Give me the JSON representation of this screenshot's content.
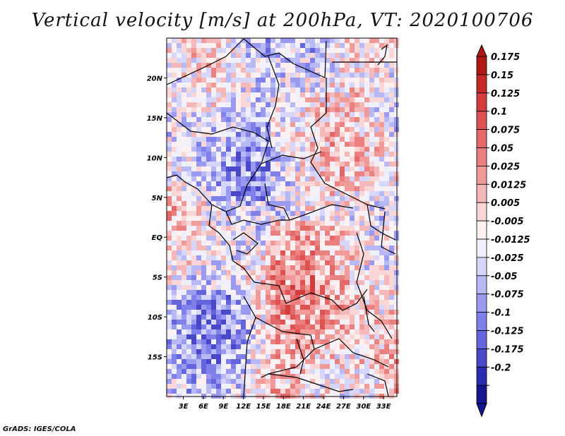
{
  "title": "Vertical velocity [m/s] at 200hPa, VT: 2020100706",
  "footer": "GrADS: IGES/COLA",
  "map": {
    "lat_labels": [
      "20N",
      "15N",
      "10N",
      "5N",
      "EQ",
      "5S",
      "10S",
      "15S"
    ],
    "lat_values": [
      20,
      15,
      10,
      5,
      0,
      -5,
      -10,
      -15
    ],
    "lon_labels": [
      "3E",
      "6E",
      "9E",
      "12E",
      "15E",
      "18E",
      "21E",
      "24E",
      "27E",
      "30E",
      "33E"
    ],
    "lon_values": [
      3,
      6,
      9,
      12,
      15,
      18,
      21,
      24,
      27,
      30,
      33
    ],
    "lon_range": [
      0.5,
      35
    ],
    "lat_range": [
      -20,
      25
    ]
  },
  "colorbar": {
    "labels": [
      "0.175",
      "0.15",
      "0.125",
      "0.1",
      "0.075",
      "0.05",
      "0.025",
      "0.0125",
      "0.005",
      "-0.005",
      "-0.0125",
      "-0.025",
      "-0.05",
      "-0.075",
      "-0.1",
      "-0.125",
      "-0.175",
      "-0.2"
    ],
    "colors": [
      "#b01818",
      "#c42a2a",
      "#d23d3d",
      "#de5252",
      "#e46868",
      "#ea8080",
      "#f09a9a",
      "#f5b8b8",
      "#fad6d6",
      "#fdf0f0",
      "#f0f0fd",
      "#d6d6fa",
      "#b8b8f5",
      "#9a9af0",
      "#8080ea",
      "#6464dc",
      "#4848c8",
      "#2c2cb0",
      "#161690"
    ]
  }
}
